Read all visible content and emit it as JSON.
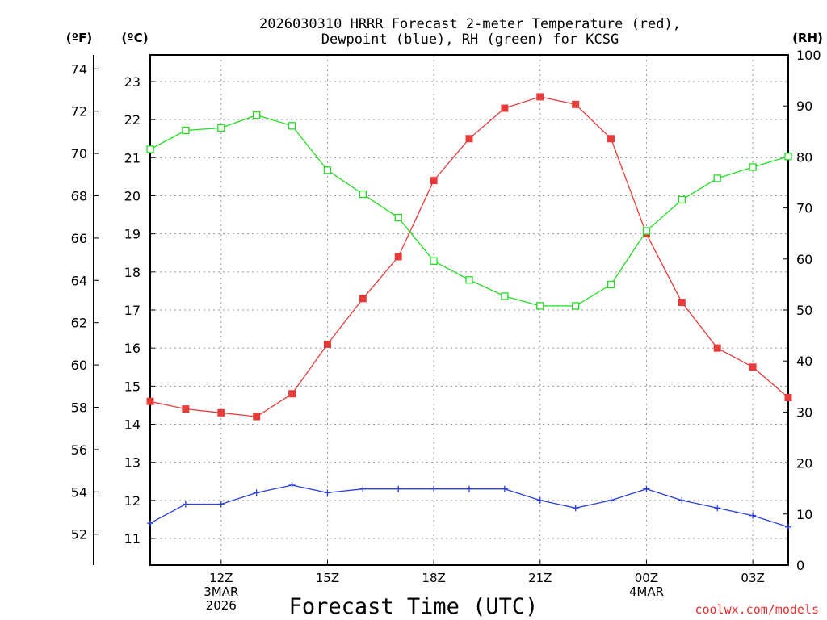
{
  "chart_data": {
    "type": "line",
    "title_lines": [
      "2026030310 HRRR Forecast 2-meter Temperature (red),",
      "Dewpoint (blue), RH (green) for KCSG"
    ],
    "units": {
      "fahrenheit": "(ºF)",
      "celsius": "(ºC)",
      "rh": "(RH)"
    },
    "xlabel": "Forecast Time (UTC)",
    "credit": "coolwx.com/models",
    "x_ticks": [
      {
        "hour": 12,
        "lines": [
          "12Z",
          "3MAR",
          "2026"
        ]
      },
      {
        "hour": 15,
        "lines": [
          "15Z"
        ]
      },
      {
        "hour": 18,
        "lines": [
          "18Z"
        ]
      },
      {
        "hour": 21,
        "lines": [
          "21Z"
        ]
      },
      {
        "hour": 24,
        "lines": [
          "00Z",
          "4MAR"
        ]
      },
      {
        "hour": 27,
        "lines": [
          "03Z"
        ]
      }
    ],
    "x_hours": [
      10,
      11,
      12,
      13,
      14,
      15,
      16,
      17,
      18,
      19,
      20,
      21,
      22,
      23,
      24,
      25,
      26,
      27,
      28
    ],
    "xlim": [
      10,
      28
    ],
    "celsius_axis": {
      "range": [
        10.3,
        23.7
      ],
      "ticks": [
        "11",
        "12",
        "13",
        "14",
        "15",
        "16",
        "17",
        "18",
        "19",
        "20",
        "21",
        "22",
        "23"
      ]
    },
    "fahrenheit_axis": {
      "ticks": [
        "52",
        "54",
        "56",
        "58",
        "60",
        "62",
        "64",
        "66",
        "68",
        "70",
        "72",
        "74"
      ]
    },
    "rh_axis": {
      "range": [
        0,
        100
      ],
      "ticks": [
        "0",
        "10",
        "20",
        "30",
        "40",
        "50",
        "60",
        "70",
        "80",
        "90",
        "100"
      ]
    },
    "series": [
      {
        "name": "Temperature",
        "unit": "C",
        "color": "#e83c3c",
        "marker": "filled-square",
        "values": [
          14.6,
          14.4,
          14.3,
          14.2,
          14.8,
          16.1,
          17.3,
          18.4,
          20.4,
          21.5,
          22.3,
          22.6,
          22.4,
          21.5,
          19.0,
          17.2,
          16.0,
          15.5,
          14.7
        ]
      },
      {
        "name": "Dewpoint",
        "unit": "C",
        "color": "#2a3fe0",
        "marker": "plus",
        "values": [
          11.4,
          11.9,
          11.9,
          12.2,
          12.4,
          12.2,
          12.3,
          12.3,
          12.3,
          12.3,
          12.3,
          12.0,
          11.8,
          12.0,
          12.3,
          12.0,
          11.8,
          11.6,
          11.3
        ]
      },
      {
        "name": "Relative Humidity",
        "unit": "%",
        "color": "#22dd22",
        "marker": "open-square",
        "values": [
          81.5,
          85.2,
          85.7,
          88.2,
          86.1,
          77.4,
          72.7,
          68.1,
          59.6,
          55.9,
          52.7,
          50.8,
          50.8,
          55.0,
          65.5,
          71.6,
          75.8,
          78.0,
          80.1
        ]
      }
    ]
  }
}
